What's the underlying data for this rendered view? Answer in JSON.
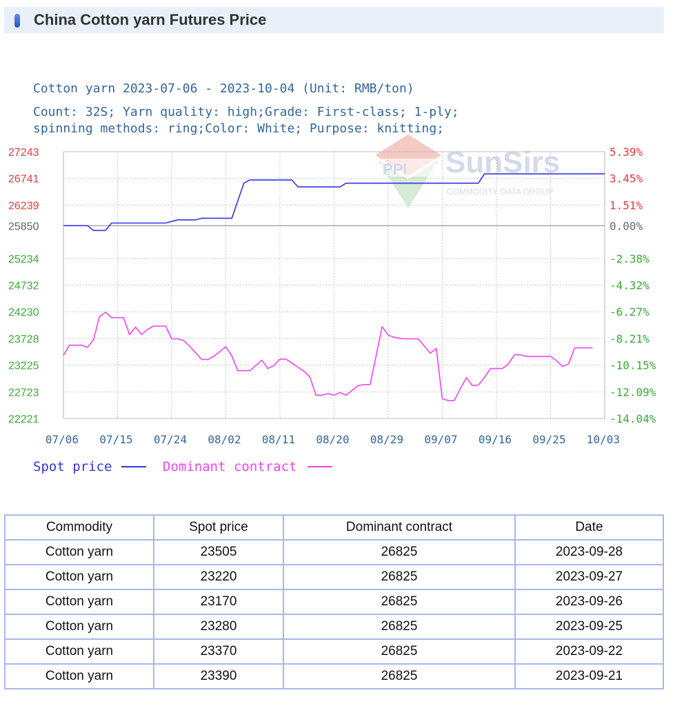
{
  "header": {
    "title": "China Cotton yarn Futures Price"
  },
  "chart_data": {
    "type": "line",
    "title": "Cotton yarn 2023-07-06 - 2023-10-04   (Unit: RMB/ton)",
    "subtitle_line1": "Count: 32S; Yarn quality: high;Grade: First-class; 1-ply;",
    "subtitle_line2": "spinning methods: ring;Color: White; Purpose: knitting;",
    "watermark": "SunSirs",
    "watermark_sub": "COMMODITY DATA GROUP",
    "y_left_ticks": [
      "27243",
      "26741",
      "26239",
      "25850",
      "25234",
      "24732",
      "24230",
      "23728",
      "23225",
      "22723",
      "22221"
    ],
    "y_right_ticks": [
      "5.39%",
      "3.45%",
      "1.51%",
      "0.00%",
      "-2.38%",
      "-4.32%",
      "-6.27%",
      "-8.21%",
      "-10.15%",
      "-12.09%",
      "-14.04%"
    ],
    "x_ticks": [
      "07/06",
      "07/15",
      "07/24",
      "08/02",
      "08/11",
      "08/20",
      "08/29",
      "09/07",
      "09/16",
      "09/25",
      "10/03"
    ],
    "ylim": [
      22221,
      27243
    ],
    "baseline": 25850,
    "x_range_days": [
      0,
      90
    ],
    "colors": {
      "spot": "#3333dd",
      "dominant": "#ee44ee",
      "left_up": "#e03c3c",
      "left_down": "#3aa83a",
      "axis_text": "#336699",
      "baseline_tick": "#666666"
    },
    "series": [
      {
        "name": "Spot price",
        "x": [
          0,
          4,
          5,
          7,
          8,
          17,
          19,
          22,
          23,
          25,
          28,
          30,
          31,
          38,
          39,
          46,
          47,
          53,
          55,
          61,
          69,
          70,
          80,
          90
        ],
        "values": [
          25850,
          25850,
          25760,
          25760,
          25900,
          25900,
          25960,
          25960,
          25990,
          25990,
          25990,
          26650,
          26710,
          26710,
          26580,
          26580,
          26650,
          26650,
          26650,
          26650,
          26650,
          26825,
          26825,
          26825
        ]
      },
      {
        "name": "Dominant contract",
        "x": [
          0,
          1,
          3,
          4,
          5,
          6,
          7,
          8,
          10,
          11,
          12,
          13,
          14,
          15,
          17,
          18,
          19,
          20,
          21,
          23,
          24,
          25,
          27,
          28,
          29,
          31,
          33,
          34,
          35,
          36,
          37,
          40,
          41,
          42,
          43,
          44,
          45,
          46,
          47,
          48,
          49,
          50,
          51,
          53,
          54,
          55,
          56,
          57,
          58,
          59,
          61,
          62,
          63,
          64,
          65,
          66,
          67,
          68,
          69,
          70,
          71,
          72,
          73,
          74,
          75,
          76,
          77,
          78,
          79,
          81,
          82,
          83,
          84,
          85,
          86,
          87,
          88
        ],
        "values": [
          23410,
          23600,
          23600,
          23560,
          23700,
          24140,
          24220,
          24120,
          24120,
          23800,
          23940,
          23800,
          23900,
          23960,
          23960,
          23720,
          23720,
          23690,
          23580,
          23330,
          23330,
          23390,
          23570,
          23400,
          23120,
          23120,
          23320,
          23160,
          23220,
          23340,
          23340,
          23110,
          23000,
          22660,
          22660,
          22690,
          22660,
          22710,
          22660,
          22750,
          22840,
          22860,
          22860,
          23950,
          23790,
          23750,
          23730,
          23720,
          23720,
          23720,
          23450,
          23540,
          22590,
          22560,
          22560,
          22780,
          22990,
          22840,
          22850,
          22990,
          23160,
          23160,
          23160,
          23250,
          23420,
          23420,
          23390,
          23390,
          23390,
          23390,
          23310,
          23200,
          23250,
          23550,
          23550,
          23550,
          23550
        ]
      }
    ],
    "legend": [
      {
        "label": "Spot price"
      },
      {
        "label": "Dominant contract"
      }
    ],
    "legend_placement": "bottom-left",
    "grid": true
  },
  "table": {
    "headers": [
      "Commodity",
      "Spot price",
      "Dominant contract",
      "Date"
    ],
    "rows": [
      [
        "Cotton yarn",
        "23505",
        "26825",
        "2023-09-28"
      ],
      [
        "Cotton yarn",
        "23220",
        "26825",
        "2023-09-27"
      ],
      [
        "Cotton yarn",
        "23170",
        "26825",
        "2023-09-26"
      ],
      [
        "Cotton yarn",
        "23280",
        "26825",
        "2023-09-25"
      ],
      [
        "Cotton yarn",
        "23370",
        "26825",
        "2023-09-22"
      ],
      [
        "Cotton yarn",
        "23390",
        "26825",
        "2023-09-21"
      ]
    ]
  }
}
